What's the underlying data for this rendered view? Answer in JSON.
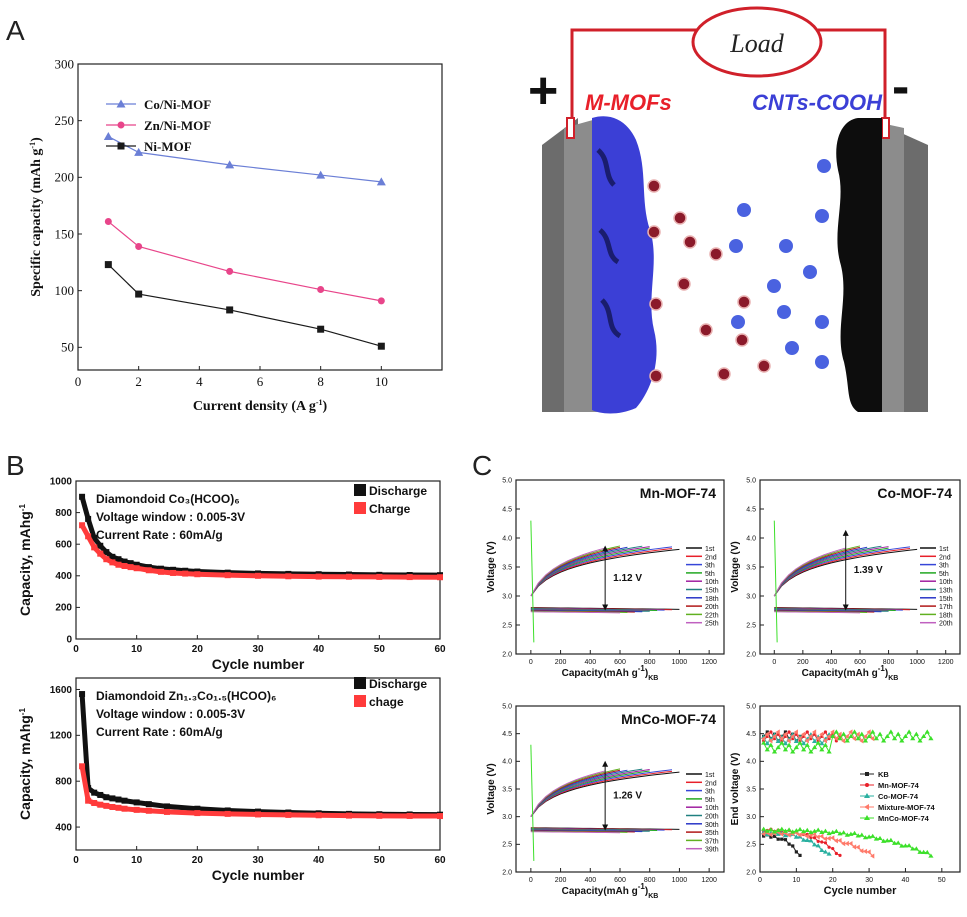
{
  "panel_labels": {
    "a": "A",
    "b": "B",
    "c": "C"
  },
  "schematic": {
    "load": "Load",
    "plus": "+",
    "minus": "-",
    "left_material": "M-MOFs",
    "right_material": "CNTs-COOH",
    "colors": {
      "wire": "#d0202a",
      "cathode": "#3b3fd6",
      "anion": "#8b1a2a",
      "cation": "#4a62e0",
      "collector": "#808080"
    }
  },
  "chart_data": [
    {
      "id": "A-rate",
      "type": "line",
      "xlabel": "Current density  (A g",
      "xlabel_sup": "-1",
      "xlabel_end": ")",
      "ylabel": "Specific capacity (mAh g",
      "ylabel_sup": "-1",
      "ylabel_end": ")",
      "xlim": [
        0,
        12
      ],
      "ylim": [
        30,
        300
      ],
      "xticks": [
        0,
        2,
        4,
        6,
        8,
        10
      ],
      "yticks": [
        50,
        100,
        150,
        200,
        250,
        300
      ],
      "legend_position": "top-left",
      "series": [
        {
          "name": "Co/Ni-MOF",
          "color": "#6b7fd6",
          "marker": "triangle",
          "x": [
            1,
            2,
            5,
            8,
            10
          ],
          "y": [
            236,
            222,
            211,
            202,
            196
          ]
        },
        {
          "name": "Zn/Ni-MOF",
          "color": "#e8458a",
          "marker": "circle",
          "x": [
            1,
            2,
            5,
            8,
            10
          ],
          "y": [
            161,
            139,
            117,
            101,
            91
          ]
        },
        {
          "name": "Ni-MOF",
          "color": "#1a1a1a",
          "marker": "square",
          "x": [
            1,
            2,
            5,
            8,
            10
          ],
          "y": [
            123,
            97,
            83,
            66,
            51
          ]
        }
      ]
    },
    {
      "id": "B-top",
      "type": "scatter",
      "xlabel": "Cycle number",
      "ylabel": "Capacity, mAhg",
      "ylabel_sup": "-1",
      "xlim": [
        0,
        60
      ],
      "ylim": [
        0,
        1000
      ],
      "xticks": [
        0,
        10,
        20,
        30,
        40,
        50,
        60
      ],
      "yticks": [
        0,
        200,
        400,
        600,
        800,
        1000
      ],
      "annotations": [
        "Diamondoid Co₃(HCOO)₆",
        "Voltage window : 0.005-3V",
        "Current Rate      : 60mA/g"
      ],
      "legend_position": "top-right",
      "series": [
        {
          "name": "Discharge",
          "color": "#111111",
          "x": [
            1,
            2,
            3,
            4,
            5,
            6,
            7,
            8,
            9,
            10,
            12,
            14,
            16,
            18,
            20,
            25,
            30,
            35,
            40,
            45,
            50,
            55,
            60
          ],
          "y": [
            900,
            760,
            640,
            590,
            550,
            520,
            505,
            490,
            480,
            470,
            455,
            445,
            438,
            432,
            427,
            420,
            415,
            412,
            410,
            408,
            406,
            405,
            404
          ]
        },
        {
          "name": "Charge",
          "color": "#ff3b3b",
          "x": [
            1,
            2,
            3,
            4,
            5,
            6,
            7,
            8,
            9,
            10,
            12,
            14,
            16,
            18,
            20,
            25,
            30,
            35,
            40,
            45,
            50,
            55,
            60
          ],
          "y": [
            720,
            650,
            580,
            540,
            505,
            485,
            470,
            462,
            455,
            448,
            435,
            425,
            418,
            414,
            410,
            404,
            400,
            397,
            395,
            394,
            393,
            392,
            391
          ]
        }
      ]
    },
    {
      "id": "B-bottom",
      "type": "scatter",
      "xlabel": "Cycle number",
      "ylabel": "Capacity, mAhg",
      "ylabel_sup": "-1",
      "xlim": [
        0,
        60
      ],
      "ylim": [
        200,
        1700
      ],
      "xticks": [
        0,
        10,
        20,
        30,
        40,
        50,
        60
      ],
      "yticks": [
        400,
        800,
        1200,
        1600
      ],
      "annotations": [
        "Diamondoid Zn₁.₃Co₁.₅(HCOO)₆",
        "Voltage window : 0.005-3V",
        "Current Rate      : 60mA/g"
      ],
      "legend_position": "top-right",
      "series": [
        {
          "name": "Discharge",
          "color": "#111111",
          "x": [
            1,
            2,
            3,
            4,
            5,
            6,
            7,
            8,
            10,
            12,
            15,
            20,
            25,
            30,
            35,
            40,
            45,
            50,
            55,
            60
          ],
          "y": [
            1560,
            740,
            700,
            680,
            660,
            650,
            640,
            630,
            615,
            600,
            580,
            560,
            545,
            535,
            527,
            520,
            515,
            512,
            510,
            508
          ]
        },
        {
          "name": "chage",
          "color": "#ff3b3b",
          "x": [
            1,
            2,
            3,
            4,
            5,
            6,
            7,
            8,
            10,
            12,
            15,
            20,
            25,
            30,
            35,
            40,
            45,
            50,
            55,
            60
          ],
          "y": [
            930,
            630,
            610,
            595,
            585,
            575,
            568,
            560,
            550,
            542,
            532,
            522,
            515,
            510,
            506,
            503,
            500,
            498,
            497,
            496
          ]
        }
      ]
    },
    {
      "id": "C1-Mn",
      "type": "line",
      "title": "Mn-MOF-74",
      "xlabel": "Capacity(mAh g",
      "xlabel_sup": "-1",
      "xlabel_end": ")",
      "xlabel_sub": "KB",
      "ylabel": "Voltage (V)",
      "xlim": [
        -100,
        1300
      ],
      "ylim": [
        2.0,
        5.0
      ],
      "xticks": [
        0,
        200,
        400,
        600,
        800,
        1000,
        1200
      ],
      "yticks": [
        2.0,
        2.5,
        3.0,
        3.5,
        4.0,
        4.5,
        5.0
      ],
      "annotation": "1.12 V",
      "legend": [
        "1st",
        "2nd",
        "3th",
        "5th",
        "10th",
        "15th",
        "18th",
        "20th",
        "22th",
        "25th"
      ]
    },
    {
      "id": "C2-Co",
      "type": "line",
      "title": "Co-MOF-74",
      "xlabel": "Capacity(mAh g",
      "xlabel_sup": "-1",
      "xlabel_end": ")",
      "xlabel_sub": "KB",
      "ylabel": "Voltage (V)",
      "xlim": [
        -100,
        1300
      ],
      "ylim": [
        2.0,
        5.0
      ],
      "xticks": [
        0,
        200,
        400,
        600,
        800,
        1000,
        1200
      ],
      "yticks": [
        2.0,
        2.5,
        3.0,
        3.5,
        4.0,
        4.5,
        5.0
      ],
      "annotation": "1.39 V",
      "legend": [
        "1st",
        "2nd",
        "3th",
        "5th",
        "10th",
        "13th",
        "15th",
        "17th",
        "18th",
        "20th"
      ]
    },
    {
      "id": "C3-MnCo",
      "type": "line",
      "title": "MnCo-MOF-74",
      "xlabel": "Capacity(mAh g",
      "xlabel_sup": "-1",
      "xlabel_end": ")",
      "xlabel_sub": "KB",
      "ylabel": "Voltage (V)",
      "xlim": [
        -100,
        1300
      ],
      "ylim": [
        2.0,
        5.0
      ],
      "xticks": [
        0,
        200,
        400,
        600,
        800,
        1000,
        1200
      ],
      "yticks": [
        2.0,
        2.5,
        3.0,
        3.5,
        4.0,
        4.5,
        5.0
      ],
      "annotation": "1.26 V",
      "legend": [
        "1st",
        "2nd",
        "3th",
        "5th",
        "10th",
        "20th",
        "30th",
        "35th",
        "37th",
        "39th"
      ]
    },
    {
      "id": "C4-end",
      "type": "scatter",
      "xlabel": "Cycle number",
      "ylabel": "End voltage (V)",
      "xlim": [
        0,
        55
      ],
      "ylim": [
        2.0,
        5.0
      ],
      "xticks": [
        0,
        10,
        20,
        30,
        40,
        50
      ],
      "yticks": [
        2.0,
        2.5,
        3.0,
        3.5,
        4.0,
        4.5,
        5.0
      ],
      "legend_position": "right",
      "series": [
        {
          "name": "KB",
          "color": "#222222",
          "marker": "square",
          "cycles": 11,
          "charge_end": 4.45,
          "discharge_start": 2.65,
          "discharge_end": 2.3
        },
        {
          "name": "Mn-MOF-74",
          "color": "#e8202a",
          "marker": "circle",
          "cycles": 22,
          "charge_end": 4.45,
          "discharge_start": 2.75,
          "discharge_end": 2.3
        },
        {
          "name": "Co-MOF-74",
          "color": "#2ab0a0",
          "marker": "triangle",
          "cycles": 19,
          "charge_end": 4.4,
          "discharge_start": 2.7,
          "discharge_end": 2.3
        },
        {
          "name": "Mixture-MOF-74",
          "color": "#ff7a6a",
          "marker": "triangle-left",
          "cycles": 31,
          "charge_end": 4.45,
          "discharge_start": 2.7,
          "discharge_end": 2.3
        },
        {
          "name": "MnCo-MOF-74",
          "color": "#3ce02a",
          "marker": "triangle",
          "cycles": 47,
          "charge_end": 4.5,
          "discharge_start": 2.75,
          "discharge_end": 2.3
        }
      ]
    }
  ]
}
